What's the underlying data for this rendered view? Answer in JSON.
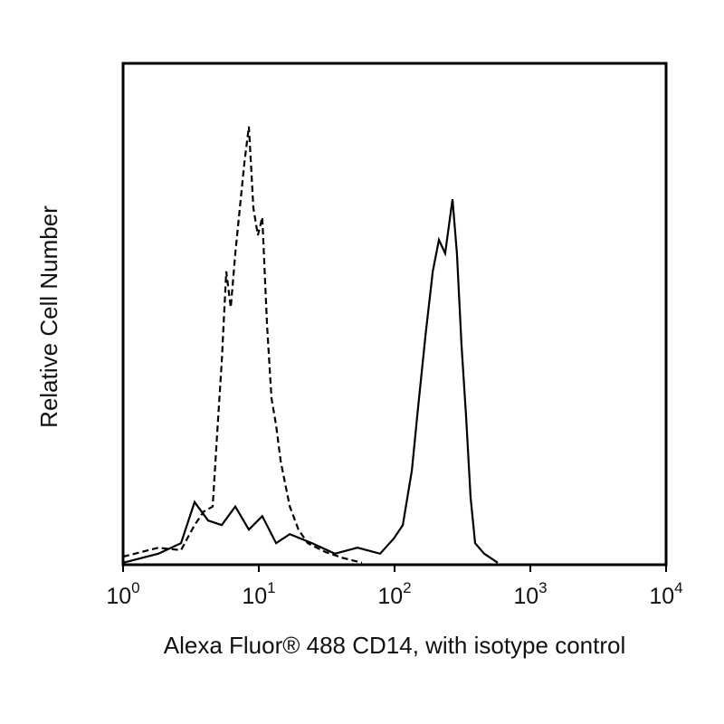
{
  "chart_data": {
    "type": "line",
    "x_label": "Alexa Fluor® 488 CD14, with isotype control",
    "y_label": "Relative Cell Number",
    "xscale": "log",
    "xlim": [
      1,
      10000
    ],
    "ylim": [
      0,
      100
    ],
    "xticks": [
      {
        "value": 1,
        "label": "10",
        "exponent": "0"
      },
      {
        "value": 10,
        "label": "10",
        "exponent": "1"
      },
      {
        "value": 100,
        "label": "10",
        "exponent": "2"
      },
      {
        "value": 1000,
        "label": "10",
        "exponent": "3"
      },
      {
        "value": 10000,
        "label": "10",
        "exponent": "4"
      }
    ],
    "series": [
      {
        "color": "#000000",
        "line_style": "dashed",
        "x": [
          1,
          1.82,
          2.67,
          3.36,
          3.92,
          4.57,
          4.93,
          5.33,
          5.75,
          6.21,
          6.71,
          7.24,
          7.82,
          8.45,
          9.12,
          9.85,
          10.6,
          11.5,
          12.4,
          13.4,
          14.5,
          16.9,
          19.6,
          22.9,
          31.1,
          42.3,
          57.5
        ],
        "values": [
          1.6,
          3.4,
          2.9,
          7.9,
          10.6,
          11.6,
          26,
          40.4,
          58.5,
          51.3,
          62.1,
          71.1,
          80.1,
          87.4,
          71.1,
          65.7,
          69.3,
          47.7,
          33.2,
          27.8,
          20.6,
          11.6,
          7.0,
          4.3,
          2.5,
          1.3,
          0.4
        ]
      },
      {
        "color": "#000000",
        "line_style": "solid",
        "x": [
          1,
          1.82,
          2.67,
          3.36,
          4.23,
          5.33,
          6.71,
          8.45,
          10.6,
          13.4,
          16.9,
          24.7,
          36.3,
          53.3,
          78.2,
          98.5,
          115,
          134,
          149,
          169,
          191,
          212,
          236,
          267,
          288,
          311,
          336,
          363,
          392,
          457,
          575
        ],
        "values": [
          0.4,
          2.2,
          4.3,
          12.5,
          8.8,
          7.9,
          11.6,
          7.0,
          9.7,
          4.3,
          6.1,
          4.3,
          2.2,
          3.4,
          2.2,
          5.2,
          7.9,
          18.8,
          31.4,
          45.8,
          58.5,
          64.8,
          62.1,
          72.9,
          62.1,
          44,
          29.6,
          13.4,
          4.3,
          2.2,
          0.4
        ]
      }
    ]
  }
}
